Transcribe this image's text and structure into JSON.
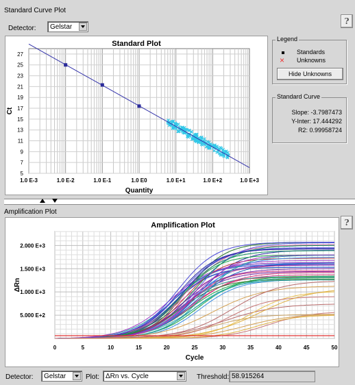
{
  "standard_panel": {
    "title": "Standard Curve Plot",
    "help": "?",
    "detector_label": "Detector:",
    "detector_value": "Gelstar",
    "plot_title": "Standard Plot",
    "legend": {
      "title": "Legend",
      "standards": "Standards",
      "unknowns": "Unknowns",
      "hide_button": "Hide Unknowns"
    },
    "curve": {
      "title": "Standard Curve",
      "slope": "Slope: -3.7987473",
      "yinter": "Y-Inter: 17.444292",
      "r2": "R2: 0.99958724"
    }
  },
  "amp_panel": {
    "title": "Amplification Plot",
    "help": "?",
    "plot_title": "Amplification Plot",
    "detector_label": "Detector:",
    "detector_value": "Gelstar",
    "plot_label": "Plot:",
    "plot_value": "ΔRn vs. Cycle",
    "threshold_label": "Threshold:",
    "threshold_value": "58.915264"
  },
  "chart_data": [
    {
      "type": "scatter",
      "title": "Standard Plot",
      "xlabel": "Quantity",
      "ylabel": "Ct",
      "xscale": "log",
      "xticks": [
        "1.0 E-3",
        "1.0 E-2",
        "1.0 E-1",
        "1.0 E0",
        "1.0 E+1",
        "1.0 E+2",
        "1.0 E+3"
      ],
      "yticks": [
        "5",
        "7",
        "9",
        "11",
        "13",
        "15",
        "17",
        "19",
        "21",
        "23",
        "25",
        "27"
      ],
      "xlim": [
        0.001,
        1000
      ],
      "ylim": [
        5,
        28
      ],
      "fit_line": {
        "slope": -3.7987473,
        "intercept": 17.444292
      },
      "standards": [
        {
          "x": 0.01,
          "y": 25.0
        },
        {
          "x": 0.1,
          "y": 21.3
        },
        {
          "x": 1.0,
          "y": 17.4
        }
      ],
      "unknowns_range": {
        "x": [
          6,
          300
        ],
        "y": [
          8.3,
          14.5
        ]
      },
      "colors": {
        "line": "#3333aa",
        "standards": "#2a2a9a",
        "unknowns": "#33c8e8"
      },
      "grid": true
    },
    {
      "type": "line",
      "title": "Amplification Plot",
      "xlabel": "Cycle",
      "ylabel": "ΔRn",
      "xticks": [
        "0",
        "5",
        "10",
        "15",
        "20",
        "25",
        "30",
        "35",
        "40",
        "45",
        "50"
      ],
      "yticks": [
        "5.000 E+2",
        "1.000 E+3",
        "1.500 E+3",
        "2.000 E+3"
      ],
      "xlim": [
        0,
        50
      ],
      "ylim": [
        0,
        2300
      ],
      "threshold": 58.915264,
      "curve_families": {
        "main": {
          "count": 38,
          "midpoint_range": [
            20.5,
            26.5
          ],
          "plateau_range": [
            1250,
            2120
          ]
        },
        "late": {
          "count": 10,
          "midpoint_range": [
            28,
            40
          ],
          "plateau_range": [
            500,
            1350
          ]
        }
      },
      "grid": true
    }
  ]
}
